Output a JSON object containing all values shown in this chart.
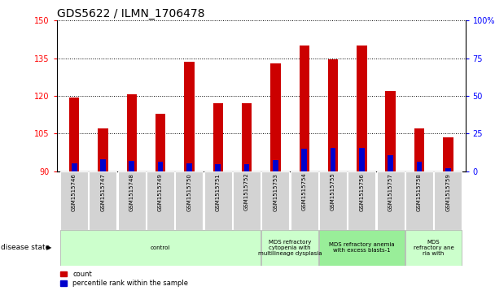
{
  "title": "GDS5622 / ILMN_1706478",
  "samples": [
    "GSM1515746",
    "GSM1515747",
    "GSM1515748",
    "GSM1515749",
    "GSM1515750",
    "GSM1515751",
    "GSM1515752",
    "GSM1515753",
    "GSM1515754",
    "GSM1515755",
    "GSM1515756",
    "GSM1515757",
    "GSM1515758",
    "GSM1515759"
  ],
  "count_values": [
    119.5,
    107.0,
    120.5,
    113.0,
    133.5,
    117.0,
    117.0,
    133.0,
    140.0,
    134.5,
    140.0,
    122.0,
    107.0,
    103.5
  ],
  "percentile_values": [
    5.0,
    8.0,
    7.0,
    6.5,
    5.0,
    4.5,
    4.5,
    7.5,
    15.0,
    15.5,
    15.5,
    10.5,
    6.0,
    2.0
  ],
  "y_min": 90,
  "y_max": 150,
  "y_ticks_left": [
    90,
    105,
    120,
    135,
    150
  ],
  "y_ticks_right": [
    0,
    25,
    50,
    75,
    100
  ],
  "bar_color": "#cc0000",
  "percentile_color": "#0000cc",
  "disease_groups": [
    {
      "label": "control",
      "start": 0,
      "end": 7,
      "color": "#ccffcc"
    },
    {
      "label": "MDS refractory\ncytopenia with\nmultilineage dysplasia",
      "start": 7,
      "end": 9,
      "color": "#ccffcc"
    },
    {
      "label": "MDS refractory anemia\nwith excess blasts-1",
      "start": 9,
      "end": 12,
      "color": "#99ee99"
    },
    {
      "label": "MDS\nrefractory ane\nria with",
      "start": 12,
      "end": 14,
      "color": "#ccffcc"
    }
  ],
  "disease_state_label": "disease state",
  "legend_count": "count",
  "legend_percentile": "percentile rank within the sample",
  "bar_width": 0.35,
  "grid_linestyle": "dotted",
  "title_fontsize": 10,
  "tick_fontsize": 7,
  "sample_fontsize": 5,
  "disease_fontsize": 5,
  "legend_fontsize": 6
}
